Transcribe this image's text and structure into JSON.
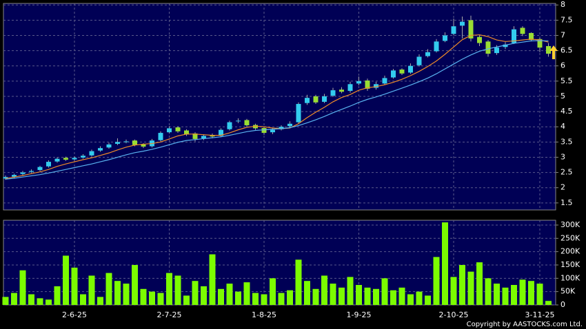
{
  "chart_data": [
    {
      "type": "candlestick",
      "categories": [
        null,
        null,
        null,
        null,
        null,
        null,
        null,
        null,
        "2-6-25",
        null,
        null,
        null,
        null,
        null,
        null,
        null,
        null,
        null,
        null,
        "2-7-25",
        null,
        null,
        null,
        null,
        null,
        null,
        null,
        null,
        null,
        null,
        "1-8-25",
        null,
        null,
        null,
        null,
        null,
        null,
        null,
        null,
        null,
        null,
        "1-9-25",
        null,
        null,
        null,
        null,
        null,
        null,
        null,
        null,
        null,
        null,
        "2-10-25",
        null,
        null,
        null,
        null,
        null,
        null,
        null,
        null,
        null,
        "3-11-25",
        null
      ],
      "open": [
        2.3,
        2.36,
        2.45,
        2.52,
        2.58,
        2.7,
        2.86,
        2.98,
        2.93,
        2.99,
        3.06,
        3.22,
        3.32,
        3.44,
        3.5,
        3.55,
        3.42,
        3.36,
        3.56,
        3.82,
        3.98,
        3.88,
        3.78,
        3.62,
        3.72,
        3.7,
        3.92,
        4.18,
        4.22,
        4.06,
        3.96,
        3.82,
        3.92,
        4.02,
        4.15,
        4.78,
        5.0,
        4.82,
        5.02,
        5.22,
        5.18,
        5.42,
        5.52,
        5.28,
        5.42,
        5.62,
        5.88,
        5.78,
        6.02,
        6.32,
        6.48,
        6.82,
        7.05,
        7.32,
        7.5,
        6.95,
        6.8,
        6.42,
        6.62,
        6.75,
        7.25,
        7.08,
        6.88,
        6.65
      ],
      "high": [
        2.4,
        2.46,
        2.55,
        2.6,
        2.72,
        2.9,
        3.0,
        3.02,
        3.03,
        3.1,
        3.25,
        3.36,
        3.48,
        3.62,
        3.58,
        3.58,
        3.46,
        3.6,
        3.85,
        4.02,
        4.02,
        3.92,
        3.82,
        3.75,
        3.78,
        3.95,
        4.2,
        4.28,
        4.26,
        4.1,
        4.0,
        3.95,
        4.05,
        4.18,
        4.8,
        5.05,
        5.05,
        5.08,
        5.28,
        5.3,
        5.48,
        5.65,
        5.58,
        5.48,
        5.68,
        5.9,
        5.92,
        6.08,
        6.38,
        6.55,
        6.88,
        7.1,
        7.55,
        7.62,
        7.65,
        7.0,
        6.85,
        6.68,
        6.78,
        7.3,
        7.3,
        7.1,
        6.92,
        6.75
      ],
      "low": [
        2.26,
        2.32,
        2.41,
        2.48,
        2.54,
        2.66,
        2.82,
        2.88,
        2.89,
        2.95,
        3.02,
        3.18,
        3.28,
        3.4,
        3.46,
        3.36,
        3.3,
        3.32,
        3.52,
        3.78,
        3.8,
        3.7,
        3.52,
        3.56,
        3.62,
        3.66,
        3.88,
        4.12,
        4.0,
        3.9,
        3.74,
        3.76,
        3.88,
        3.98,
        4.1,
        4.72,
        4.75,
        4.78,
        4.98,
        5.1,
        5.12,
        5.36,
        5.18,
        5.22,
        5.38,
        5.58,
        5.7,
        5.74,
        5.98,
        6.28,
        6.44,
        6.78,
        7.0,
        6.9,
        6.8,
        6.65,
        6.3,
        6.36,
        6.55,
        6.72,
        6.98,
        6.8,
        6.45,
        6.3
      ],
      "close": [
        2.35,
        2.42,
        2.5,
        2.55,
        2.68,
        2.85,
        2.95,
        2.92,
        2.98,
        3.05,
        3.2,
        3.3,
        3.42,
        3.5,
        3.52,
        3.4,
        3.35,
        3.55,
        3.8,
        3.95,
        3.85,
        3.75,
        3.6,
        3.7,
        3.68,
        3.9,
        4.15,
        4.2,
        4.05,
        3.95,
        3.8,
        3.9,
        4.0,
        4.1,
        4.75,
        4.95,
        4.8,
        5.0,
        5.2,
        5.15,
        5.4,
        5.5,
        5.25,
        5.4,
        5.6,
        5.85,
        5.75,
        6.0,
        6.3,
        6.45,
        6.8,
        7.0,
        7.3,
        7.45,
        6.9,
        6.75,
        6.4,
        6.6,
        6.7,
        7.2,
        7.05,
        6.85,
        6.6,
        6.4
      ],
      "up_color": "#33ccee",
      "down_color": "#99dd33",
      "series": [
        {
          "color": "#f08c28",
          "values": [
            2.3,
            2.35,
            2.4,
            2.46,
            2.52,
            2.6,
            2.7,
            2.78,
            2.85,
            2.92,
            2.98,
            3.06,
            3.14,
            3.24,
            3.33,
            3.4,
            3.43,
            3.45,
            3.5,
            3.6,
            3.7,
            3.76,
            3.76,
            3.74,
            3.72,
            3.72,
            3.8,
            3.9,
            3.98,
            4.02,
            4.0,
            3.96,
            3.94,
            3.96,
            4.1,
            4.3,
            4.48,
            4.64,
            4.82,
            4.96,
            5.06,
            5.2,
            5.28,
            5.32,
            5.38,
            5.46,
            5.56,
            5.68,
            5.82,
            5.98,
            6.16,
            6.38,
            6.62,
            6.86,
            7.0,
            7.02,
            6.96,
            6.85,
            6.8,
            6.82,
            6.85,
            6.88,
            6.85,
            6.78
          ]
        },
        {
          "color": "#5ab4f0",
          "values": [
            2.28,
            2.31,
            2.35,
            2.39,
            2.43,
            2.48,
            2.54,
            2.6,
            2.66,
            2.72,
            2.78,
            2.85,
            2.92,
            3.0,
            3.08,
            3.15,
            3.2,
            3.26,
            3.33,
            3.41,
            3.49,
            3.55,
            3.58,
            3.61,
            3.64,
            3.67,
            3.72,
            3.78,
            3.84,
            3.88,
            3.9,
            3.92,
            3.94,
            3.97,
            4.04,
            4.13,
            4.23,
            4.34,
            4.46,
            4.57,
            4.68,
            4.8,
            4.9,
            4.98,
            5.07,
            5.17,
            5.27,
            5.37,
            5.48,
            5.6,
            5.74,
            5.9,
            6.06,
            6.22,
            6.36,
            6.48,
            6.56,
            6.62,
            6.68,
            6.74,
            6.78,
            6.82,
            6.83,
            6.82
          ]
        }
      ],
      "ylim": [
        1.27,
        8.05
      ],
      "yticks": [
        1.5,
        2,
        2.5,
        3,
        3.5,
        4,
        4.5,
        5,
        5.5,
        6,
        6.5,
        7,
        7.5,
        8
      ],
      "grid": true
    },
    {
      "type": "bar",
      "values": [
        30000,
        45000,
        130000,
        40000,
        25000,
        20000,
        70000,
        185000,
        140000,
        40000,
        110000,
        30000,
        120000,
        90000,
        80000,
        150000,
        60000,
        50000,
        45000,
        120000,
        110000,
        35000,
        90000,
        70000,
        190000,
        60000,
        80000,
        50000,
        85000,
        45000,
        40000,
        100000,
        45000,
        55000,
        170000,
        90000,
        60000,
        110000,
        80000,
        65000,
        105000,
        75000,
        65000,
        60000,
        100000,
        55000,
        65000,
        40000,
        50000,
        35000,
        180000,
        310000,
        105000,
        150000,
        125000,
        160000,
        100000,
        80000,
        65000,
        75000,
        95000,
        90000,
        80000,
        15000
      ],
      "color": "#7cfc00",
      "ylim": [
        0,
        318000
      ],
      "yticks": [
        0,
        {
          "value": 50000,
          "label": "50K"
        },
        {
          "value": 100000,
          "label": "100K"
        },
        {
          "value": 150000,
          "label": "150K"
        },
        {
          "value": 200000,
          "label": "200K"
        },
        {
          "value": 250000,
          "label": "250K"
        },
        {
          "value": 300000,
          "label": "300K"
        }
      ],
      "grid": true
    }
  ],
  "copyright": "Copyright by AASTOCKS.com Ltd."
}
